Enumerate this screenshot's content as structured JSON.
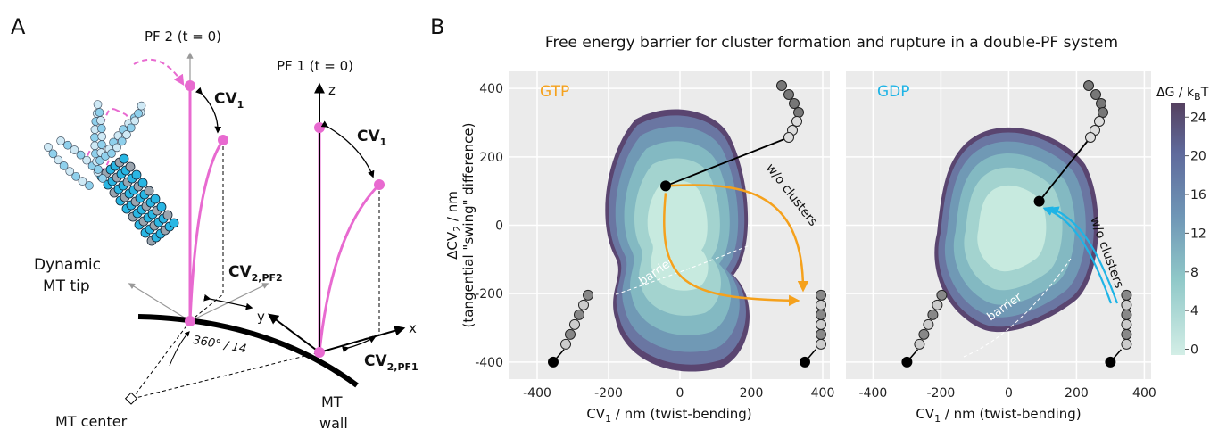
{
  "panel_a": {
    "label": "A",
    "pf2": "PF 2 (t = 0)",
    "pf1": "PF 1 (t = 0)",
    "cv1": {
      "main": "CV",
      "sub": "1"
    },
    "cv2_pf2": {
      "main": "CV",
      "sub": "2,PF2"
    },
    "cv2_pf1": {
      "main": "CV",
      "sub": "2,PF1"
    },
    "axis_z": "z",
    "axis_x": "x",
    "axis_y": "y",
    "angle": "360° / 14",
    "tip": [
      "Dynamic",
      "MT tip"
    ],
    "center": "MT center",
    "wall": [
      "MT",
      "wall"
    ]
  },
  "panel_b": {
    "label": "B",
    "title": "Free energy barrier for cluster formation and rupture in a double-PF system",
    "colorbar": {
      "label_main": "ΔG / k",
      "label_sub": "B",
      "label_end": "T",
      "lim": [
        -0.6,
        25.5
      ],
      "ticks": [
        0,
        4,
        8,
        12,
        16,
        20,
        24
      ]
    }
  },
  "chart_data": [
    {
      "type": "contour",
      "annotation": "GTP",
      "annotation_color": "#f5a11c",
      "xlabel": {
        "main": "CV",
        "sub": "1",
        "rest": " / nm (twist-bending)"
      },
      "ylabel": {
        "main": "ΔCV",
        "sub": "2",
        "rest": " / nm",
        "line2": "(tangential \"swing\" difference)"
      },
      "xlim": [
        -480,
        420
      ],
      "ylim": [
        -450,
        450
      ],
      "xticks": [
        -400,
        -200,
        0,
        200,
        400
      ],
      "yticks": [
        -400,
        -200,
        0,
        200,
        400
      ],
      "grid": true,
      "path_label": "w/o clusters",
      "barrier_label": "barrier",
      "markers": {
        "x": [
          -40,
          -355,
          350
        ],
        "y": [
          115,
          -400,
          -400
        ]
      }
    },
    {
      "type": "contour",
      "annotation": "GDP",
      "annotation_color": "#1fb4e6",
      "xlabel": {
        "main": "CV",
        "sub": "1",
        "rest": " / nm (twist-bending)"
      },
      "xlim": [
        -480,
        420
      ],
      "ylim": [
        -450,
        450
      ],
      "xticks": [
        -400,
        -200,
        0,
        200,
        400
      ],
      "yticks": [
        -400,
        -200,
        0,
        200,
        400
      ],
      "grid": true,
      "path_label": "w/o clusters",
      "barrier_label": "barrier",
      "markers": {
        "x": [
          90,
          -300,
          300
        ],
        "y": [
          70,
          -400,
          -400
        ]
      }
    }
  ]
}
